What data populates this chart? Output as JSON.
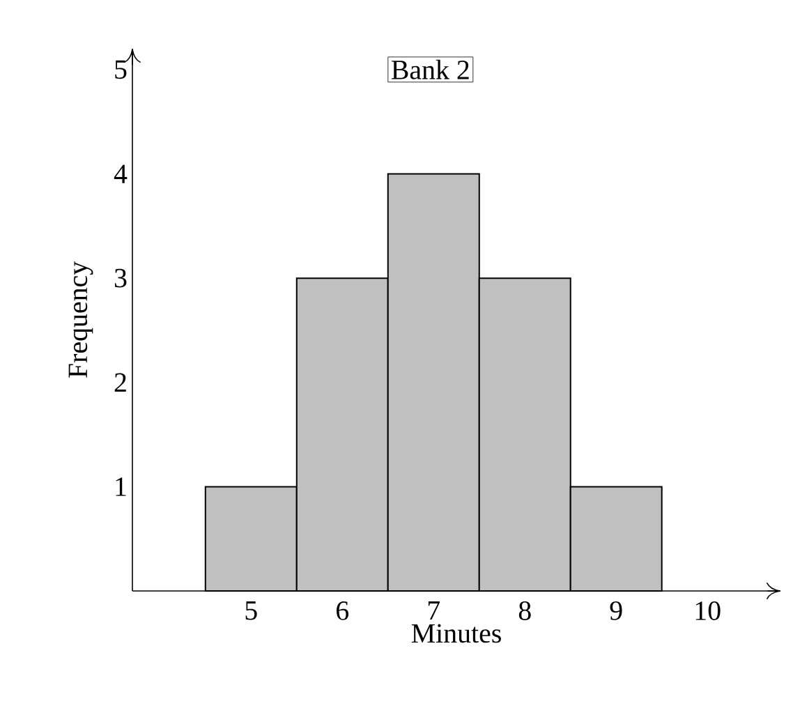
{
  "chart_data": {
    "type": "histogram",
    "title": "Bank 2",
    "xlabel": "Minutes",
    "ylabel": "Frequency",
    "bins": [
      4.5,
      5.5,
      6.5,
      7.5,
      8.5,
      9.5
    ],
    "values": [
      1,
      3,
      4,
      3,
      1
    ],
    "color": "#c0c0c0",
    "xlim": [
      3.7,
      10.8
    ],
    "ylim": [
      0,
      5.2
    ],
    "xticks": [
      5,
      6,
      7,
      8,
      9,
      10
    ],
    "yticks": [
      1,
      2,
      3,
      4,
      5
    ],
    "grid": false
  }
}
